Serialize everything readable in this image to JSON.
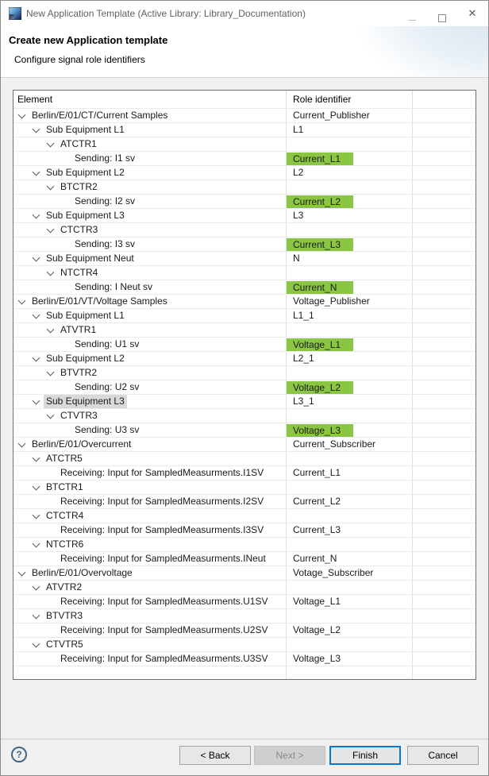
{
  "window": {
    "title": "New Application Template (Active Library: Library_Documentation)"
  },
  "header": {
    "title": "Create new Application template",
    "subtitle": "Configure signal role identifiers"
  },
  "icons": {
    "close": "✕",
    "help": "?"
  },
  "colors": {
    "green": "#8ac642",
    "accent": "#0078d7",
    "selection": "#d9d9d9"
  },
  "table": {
    "columns": [
      "Element",
      "Role identifier",
      ""
    ],
    "rows": [
      {
        "el": "Berlin/E/01/CT/Current Samples",
        "lvl": 0,
        "chev": true,
        "role": "Current_Publisher",
        "green": false,
        "sel": false
      },
      {
        "el": "Sub Equipment L1",
        "lvl": 1,
        "chev": true,
        "role": "L1",
        "green": false,
        "sel": false
      },
      {
        "el": "ATCTR1",
        "lvl": 2,
        "chev": true,
        "role": "",
        "green": false,
        "sel": false
      },
      {
        "el": "Sending: I1 sv",
        "lvl": 3,
        "chev": false,
        "role": "Current_L1",
        "green": true,
        "sel": false
      },
      {
        "el": "Sub Equipment L2",
        "lvl": 1,
        "chev": true,
        "role": "L2",
        "green": false,
        "sel": false
      },
      {
        "el": "BTCTR2",
        "lvl": 2,
        "chev": true,
        "role": "",
        "green": false,
        "sel": false
      },
      {
        "el": "Sending: I2 sv",
        "lvl": 3,
        "chev": false,
        "role": "Current_L2",
        "green": true,
        "sel": false
      },
      {
        "el": "Sub Equipment L3",
        "lvl": 1,
        "chev": true,
        "role": "L3",
        "green": false,
        "sel": false
      },
      {
        "el": "CTCTR3",
        "lvl": 2,
        "chev": true,
        "role": "",
        "green": false,
        "sel": false
      },
      {
        "el": "Sending: I3 sv",
        "lvl": 3,
        "chev": false,
        "role": "Current_L3",
        "green": true,
        "sel": false
      },
      {
        "el": "Sub Equipment Neut",
        "lvl": 1,
        "chev": true,
        "role": "N",
        "green": false,
        "sel": false
      },
      {
        "el": "NTCTR4",
        "lvl": 2,
        "chev": true,
        "role": "",
        "green": false,
        "sel": false
      },
      {
        "el": "Sending: I Neut sv",
        "lvl": 3,
        "chev": false,
        "role": "Current_N",
        "green": true,
        "sel": false
      },
      {
        "el": "Berlin/E/01/VT/Voltage Samples",
        "lvl": 0,
        "chev": true,
        "role": "Voltage_Publisher",
        "green": false,
        "sel": false
      },
      {
        "el": "Sub Equipment L1",
        "lvl": 1,
        "chev": true,
        "role": "L1_1",
        "green": false,
        "sel": false
      },
      {
        "el": "ATVTR1",
        "lvl": 2,
        "chev": true,
        "role": "",
        "green": false,
        "sel": false
      },
      {
        "el": "Sending: U1 sv",
        "lvl": 3,
        "chev": false,
        "role": "Voltage_L1",
        "green": true,
        "sel": false
      },
      {
        "el": "Sub Equipment L2",
        "lvl": 1,
        "chev": true,
        "role": "L2_1",
        "green": false,
        "sel": false
      },
      {
        "el": "BTVTR2",
        "lvl": 2,
        "chev": true,
        "role": "",
        "green": false,
        "sel": false
      },
      {
        "el": "Sending: U2 sv",
        "lvl": 3,
        "chev": false,
        "role": "Voltage_L2",
        "green": true,
        "sel": false
      },
      {
        "el": "Sub Equipment L3",
        "lvl": 1,
        "chev": true,
        "role": "L3_1",
        "green": false,
        "sel": true
      },
      {
        "el": "CTVTR3",
        "lvl": 2,
        "chev": true,
        "role": "",
        "green": false,
        "sel": false
      },
      {
        "el": "Sending: U3 sv",
        "lvl": 3,
        "chev": false,
        "role": "Voltage_L3",
        "green": true,
        "sel": false
      },
      {
        "el": "Berlin/E/01/Overcurrent",
        "lvl": 0,
        "chev": true,
        "role": "Current_Subscriber",
        "green": false,
        "sel": false
      },
      {
        "el": "ATCTR5",
        "lvl": 1,
        "chev": true,
        "role": "",
        "green": false,
        "sel": false
      },
      {
        "el": "Receiving: Input for SampledMeasurments.I1SV",
        "lvl": 2,
        "chev": false,
        "role": "Current_L1",
        "green": false,
        "sel": false
      },
      {
        "el": "BTCTR1",
        "lvl": 1,
        "chev": true,
        "role": "",
        "green": false,
        "sel": false
      },
      {
        "el": "Receiving: Input for SampledMeasurments.I2SV",
        "lvl": 2,
        "chev": false,
        "role": "Current_L2",
        "green": false,
        "sel": false
      },
      {
        "el": "CTCTR4",
        "lvl": 1,
        "chev": true,
        "role": "",
        "green": false,
        "sel": false
      },
      {
        "el": "Receiving: Input for SampledMeasurments.I3SV",
        "lvl": 2,
        "chev": false,
        "role": "Current_L3",
        "green": false,
        "sel": false
      },
      {
        "el": "NTCTR6",
        "lvl": 1,
        "chev": true,
        "role": "",
        "green": false,
        "sel": false
      },
      {
        "el": "Receiving: Input for SampledMeasurments.INeut",
        "lvl": 2,
        "chev": false,
        "role": "Current_N",
        "green": false,
        "sel": false
      },
      {
        "el": "Berlin/E/01/Overvoltage",
        "lvl": 0,
        "chev": true,
        "role": "Votage_Subscriber",
        "green": false,
        "sel": false
      },
      {
        "el": "ATVTR2",
        "lvl": 1,
        "chev": true,
        "role": "",
        "green": false,
        "sel": false
      },
      {
        "el": "Receiving: Input for SampledMeasurments.U1SV",
        "lvl": 2,
        "chev": false,
        "role": "Voltage_L1",
        "green": false,
        "sel": false
      },
      {
        "el": "BTVTR3",
        "lvl": 1,
        "chev": true,
        "role": "",
        "green": false,
        "sel": false
      },
      {
        "el": "Receiving: Input for SampledMeasurments.U2SV",
        "lvl": 2,
        "chev": false,
        "role": "Voltage_L2",
        "green": false,
        "sel": false
      },
      {
        "el": "CTVTR5",
        "lvl": 1,
        "chev": true,
        "role": "",
        "green": false,
        "sel": false
      },
      {
        "el": "Receiving: Input for SampledMeasurments.U3SV",
        "lvl": 2,
        "chev": false,
        "role": "Voltage_L3",
        "green": false,
        "sel": false
      }
    ]
  },
  "footer": {
    "back_label": "< Back",
    "next_label": "Next >",
    "finish_label": "Finish",
    "cancel_label": "Cancel"
  }
}
